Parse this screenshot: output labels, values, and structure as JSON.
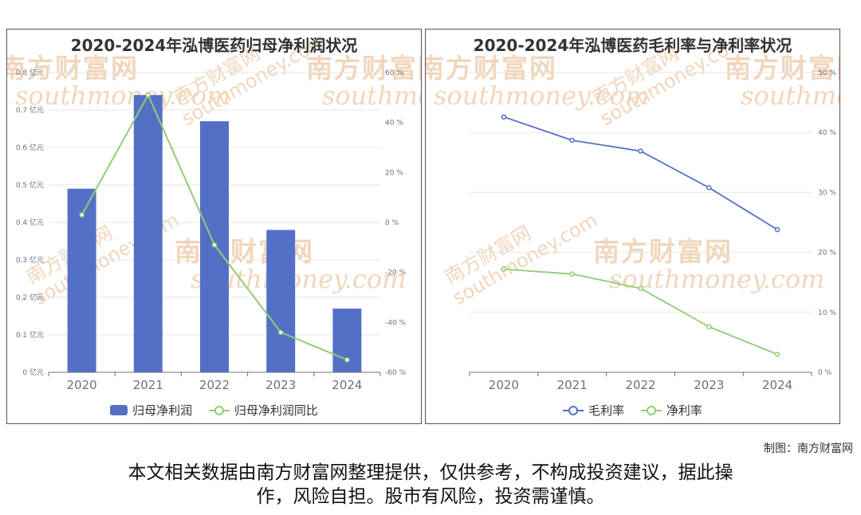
{
  "charts": [
    {
      "title": "2020-2024年泓博医药归母净利润状况",
      "legend": [
        "归母净利润",
        "归母净利润同比"
      ],
      "colors": {
        "bar": "#5470c6",
        "line": "#91cc75"
      }
    },
    {
      "title": "2020-2024年泓博医药毛利率与净利率状况",
      "legend": [
        "毛利率",
        "净利率"
      ],
      "colors": {
        "gross": "#5470c6",
        "net": "#91cc75"
      }
    }
  ],
  "chart_data": [
    {
      "type": "bar",
      "title": "2020-2024年泓博医药归母净利润状况",
      "categories": [
        "2020",
        "2021",
        "2022",
        "2023",
        "2024"
      ],
      "series": [
        {
          "name": "归母净利润",
          "type": "bar",
          "axis": "left",
          "values": [
            0.49,
            0.74,
            0.67,
            0.38,
            0.17
          ]
        },
        {
          "name": "归母净利润同比",
          "type": "line",
          "axis": "right",
          "values": [
            3,
            51,
            -9,
            -44,
            -55
          ]
        }
      ],
      "left_axis": {
        "ylim": [
          0,
          0.8
        ],
        "ticks": [
          "0 亿元",
          "0.1 亿元",
          "0.2 亿元",
          "0.3 亿元",
          "0.4 亿元",
          "0.5 亿元",
          "0.6 亿元",
          "0.7 亿元",
          "0.8 亿元"
        ]
      },
      "right_axis": {
        "ylim": [
          -60,
          60
        ],
        "ticks": [
          "-60 %",
          "-40 %",
          "-20 %",
          "0 %",
          "20 %",
          "40 %",
          "60 %"
        ]
      },
      "grid": true,
      "legend_position": "bottom"
    },
    {
      "type": "line",
      "title": "2020-2024年泓博医药毛利率与净利率状况",
      "categories": [
        "2020",
        "2021",
        "2022",
        "2023",
        "2024"
      ],
      "series": [
        {
          "name": "毛利率",
          "values": [
            42.6,
            38.7,
            36.9,
            30.8,
            23.8
          ]
        },
        {
          "name": "净利率",
          "values": [
            17.2,
            16.4,
            14.0,
            7.6,
            3.0
          ]
        }
      ],
      "right_axis": {
        "ylim": [
          0,
          50
        ],
        "ticks": [
          "0 %",
          "10 %",
          "20 %",
          "30 %",
          "40 %",
          "50 %"
        ]
      },
      "grid": true,
      "legend_position": "bottom"
    }
  ],
  "watermark": {
    "brand": "南方财富网",
    "url": "southmoney.com"
  },
  "footer": {
    "credit": "制图：南方财富网",
    "disclaimer_line1": "本文相关数据由南方财富网整理提供，仅供参考，不构成投资建议，据此操",
    "disclaimer_line2": "作，风险自担。股市有风险，投资需谨慎。"
  }
}
